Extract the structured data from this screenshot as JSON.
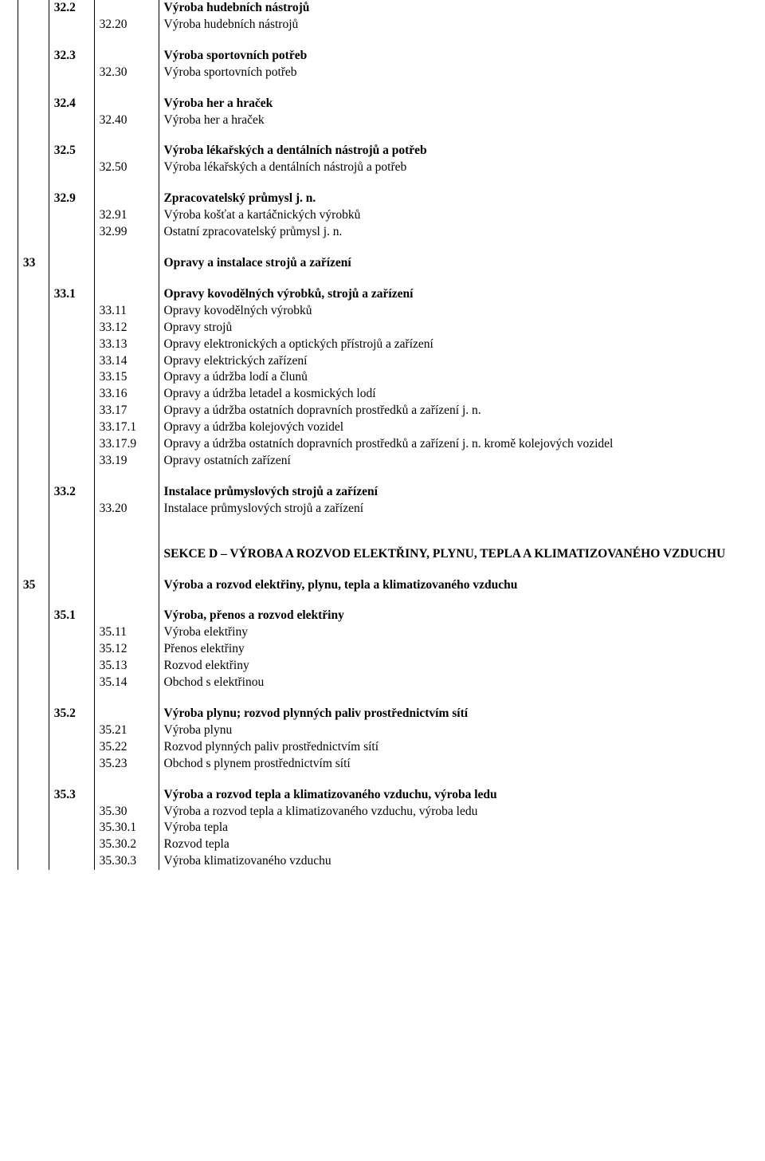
{
  "rows": [
    {
      "c1": "",
      "c2": "32.2",
      "c3": "",
      "c4": "Výroba hudebních nástrojů",
      "b2": true,
      "b4": true
    },
    {
      "c1": "",
      "c2": "",
      "c3": "32.20",
      "c4": "Výroba hudebních nástrojů"
    },
    {
      "spacer": true
    },
    {
      "c1": "",
      "c2": "32.3",
      "c3": "",
      "c4": "Výroba sportovních potřeb",
      "b2": true,
      "b4": true
    },
    {
      "c1": "",
      "c2": "",
      "c3": "32.30",
      "c4": "Výroba sportovních potřeb"
    },
    {
      "spacer": true
    },
    {
      "c1": "",
      "c2": "32.4",
      "c3": "",
      "c4": "Výroba her a hraček",
      "b2": true,
      "b4": true
    },
    {
      "c1": "",
      "c2": "",
      "c3": "32.40",
      "c4": "Výroba her a hraček"
    },
    {
      "spacer": true
    },
    {
      "c1": "",
      "c2": "32.5",
      "c3": "",
      "c4": "Výroba lékařských a dentálních nástrojů a potřeb",
      "b2": true,
      "b4": true
    },
    {
      "c1": "",
      "c2": "",
      "c3": "32.50",
      "c4": "Výroba lékařských a dentálních nástrojů a potřeb"
    },
    {
      "spacer": true
    },
    {
      "c1": "",
      "c2": "32.9",
      "c3": "",
      "c4": "Zpracovatelský průmysl j. n.",
      "b2": true,
      "b4": true
    },
    {
      "c1": "",
      "c2": "",
      "c3": "32.91",
      "c4": "Výroba košťat a kartáčnických výrobků"
    },
    {
      "c1": "",
      "c2": "",
      "c3": "32.99",
      "c4": "Ostatní zpracovatelský průmysl j. n."
    },
    {
      "spacer": true
    },
    {
      "c1": "33",
      "c2": "",
      "c3": "",
      "c4": "Opravy a instalace strojů a zařízení",
      "b1": true,
      "b4": true
    },
    {
      "spacer": true
    },
    {
      "c1": "",
      "c2": "33.1",
      "c3": "",
      "c4": "Opravy kovodělných výrobků, strojů a zařízení",
      "b2": true,
      "b4": true
    },
    {
      "c1": "",
      "c2": "",
      "c3": "33.11",
      "c4": "Opravy kovodělných výrobků"
    },
    {
      "c1": "",
      "c2": "",
      "c3": "33.12",
      "c4": "Opravy strojů"
    },
    {
      "c1": "",
      "c2": "",
      "c3": "33.13",
      "c4": "Opravy elektronických a optických přístrojů a zařízení"
    },
    {
      "c1": "",
      "c2": "",
      "c3": "33.14",
      "c4": "Opravy elektrických zařízení"
    },
    {
      "c1": "",
      "c2": "",
      "c3": "33.15",
      "c4": "Opravy a údržba lodí a člunů"
    },
    {
      "c1": "",
      "c2": "",
      "c3": "33.16",
      "c4": "Opravy a údržba letadel a kosmických lodí"
    },
    {
      "c1": "",
      "c2": "",
      "c3": "33.17",
      "c4": "Opravy a údržba ostatních dopravních prostředků a zařízení j. n."
    },
    {
      "c1": "",
      "c2": "",
      "c3": "33.17.1",
      "c4": "Opravy a údržba kolejových vozidel"
    },
    {
      "c1": "",
      "c2": "",
      "c3": "33.17.9",
      "c4": "Opravy a údržba ostatních dopravních prostředků a zařízení j. n. kromě kolejových vozidel"
    },
    {
      "c1": "",
      "c2": "",
      "c3": "33.19",
      "c4": "Opravy ostatních zařízení"
    },
    {
      "spacer": true
    },
    {
      "c1": "",
      "c2": "33.2",
      "c3": "",
      "c4": "Instalace průmyslových strojů a zařízení",
      "b2": true,
      "b4": true
    },
    {
      "c1": "",
      "c2": "",
      "c3": "33.20",
      "c4": "Instalace průmyslových strojů a zařízení"
    },
    {
      "spacer": true
    },
    {
      "spacer": true
    },
    {
      "c1": "",
      "c2": "",
      "c3": "",
      "c4": "SEKCE D – VÝROBA A ROZVOD ELEKTŘINY, PLYNU, TEPLA A KLIMATIZOVANÉHO VZDUCHU",
      "b4": true
    },
    {
      "spacer": true
    },
    {
      "c1": "35",
      "c2": "",
      "c3": "",
      "c4": "Výroba a rozvod elektřiny, plynu, tepla a klimatizovaného vzduchu",
      "b1": true,
      "b4": true
    },
    {
      "spacer": true
    },
    {
      "c1": "",
      "c2": "35.1",
      "c3": "",
      "c4": "Výroba, přenos a rozvod elektřiny",
      "b2": true,
      "b4": true
    },
    {
      "c1": "",
      "c2": "",
      "c3": "35.11",
      "c4": "Výroba elektřiny"
    },
    {
      "c1": "",
      "c2": "",
      "c3": "35.12",
      "c4": "Přenos elektřiny"
    },
    {
      "c1": "",
      "c2": "",
      "c3": "35.13",
      "c4": "Rozvod elektřiny"
    },
    {
      "c1": "",
      "c2": "",
      "c3": "35.14",
      "c4": "Obchod s elektřinou"
    },
    {
      "spacer": true
    },
    {
      "c1": "",
      "c2": "35.2",
      "c3": "",
      "c4": "Výroba plynu; rozvod plynných paliv prostřednictvím sítí",
      "b2": true,
      "b4": true
    },
    {
      "c1": "",
      "c2": "",
      "c3": "35.21",
      "c4": "Výroba plynu"
    },
    {
      "c1": "",
      "c2": "",
      "c3": "35.22",
      "c4": "Rozvod plynných paliv prostřednictvím sítí"
    },
    {
      "c1": "",
      "c2": "",
      "c3": "35.23",
      "c4": "Obchod s plynem prostřednictvím sítí"
    },
    {
      "spacer": true
    },
    {
      "c1": "",
      "c2": "35.3",
      "c3": "",
      "c4": "Výroba a rozvod tepla a klimatizovaného vzduchu, výroba ledu",
      "b2": true,
      "b4": true
    },
    {
      "c1": "",
      "c2": "",
      "c3": "35.30",
      "c4": "Výroba a rozvod tepla a klimatizovaného vzduchu, výroba ledu"
    },
    {
      "c1": "",
      "c2": "",
      "c3": "35.30.1",
      "c4": "Výroba tepla"
    },
    {
      "c1": "",
      "c2": "",
      "c3": "35.30.2",
      "c4": "Rozvod tepla"
    },
    {
      "c1": "",
      "c2": "",
      "c3": "35.30.3",
      "c4": "Výroba klimatizovaného vzduchu"
    }
  ]
}
